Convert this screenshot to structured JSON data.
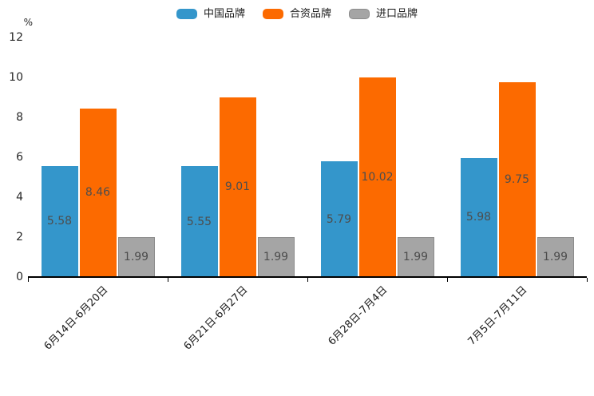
{
  "chart_data": {
    "type": "bar",
    "title": "",
    "unit_label": "%",
    "categories": [
      "6月14日-6月20日",
      "6月21日-6月27日",
      "6月28日-7月4日",
      "7月5日-7月11日"
    ],
    "series": [
      {
        "name": "中国品牌",
        "color": "#3496CB",
        "values": [
          5.58,
          5.55,
          5.79,
          5.98
        ],
        "labels": [
          "5.58",
          "5.55",
          "5.79",
          "5.98"
        ]
      },
      {
        "name": "合资品牌",
        "color": "#FC6A00",
        "values": [
          8.46,
          9.01,
          10.02,
          9.75
        ],
        "labels": [
          "8.46",
          "9.01",
          "10.02",
          "9.75"
        ]
      },
      {
        "name": "进口品牌",
        "color": "#A5A5A5",
        "border_color": "#8C8C8C",
        "values": [
          1.99,
          1.99,
          1.99,
          1.99
        ],
        "labels": [
          "1.99",
          "1.99",
          "1.99",
          "1.99"
        ]
      }
    ],
    "ylim": [
      0,
      12
    ],
    "yticks": [
      "0",
      "2",
      "4",
      "6",
      "8",
      "10",
      "12"
    ],
    "grid": false,
    "legend_position": "top",
    "value_label_color": "#4D4D4D",
    "axis_color": "#000000",
    "background_color": "#FFFFFF"
  }
}
